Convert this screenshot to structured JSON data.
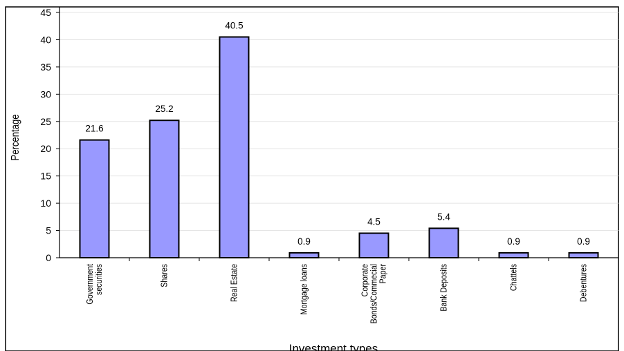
{
  "chart_data": {
    "type": "bar",
    "categories": [
      "Government securities",
      "Shares",
      "Real Estate",
      "Mortgage loans",
      "Corporate Bonds/Commecial Paper",
      "Bank Deposits",
      "Chattels",
      "Debentures"
    ],
    "category_lines": [
      [
        "Government",
        "securities"
      ],
      [
        "Shares"
      ],
      [
        "Real Estate"
      ],
      [
        "Mortgage loans"
      ],
      [
        "Corporate",
        "Bonds/Commecial",
        "Paper"
      ],
      [
        "Bank Deposits"
      ],
      [
        "Chattels"
      ],
      [
        "Debentures"
      ]
    ],
    "values": [
      21.6,
      25.2,
      40.5,
      0.9,
      4.5,
      5.4,
      0.9,
      0.9
    ],
    "data_labels": [
      "21.6",
      "25.2",
      "40.5",
      "0.9",
      "4.5",
      "5.4",
      "0.9",
      "0.9"
    ],
    "title": "",
    "xlabel": "Investment types",
    "ylabel": "Percentage",
    "ylim": [
      0,
      45
    ],
    "yticks": [
      0,
      5,
      10,
      15,
      20,
      25,
      30,
      35,
      40,
      45
    ],
    "grid": true,
    "legend": "none",
    "colors": {
      "bar_fill": "#9999ff",
      "bar_stroke": "#000000",
      "grid": "#e4e4e4",
      "axis": "#000000"
    }
  }
}
